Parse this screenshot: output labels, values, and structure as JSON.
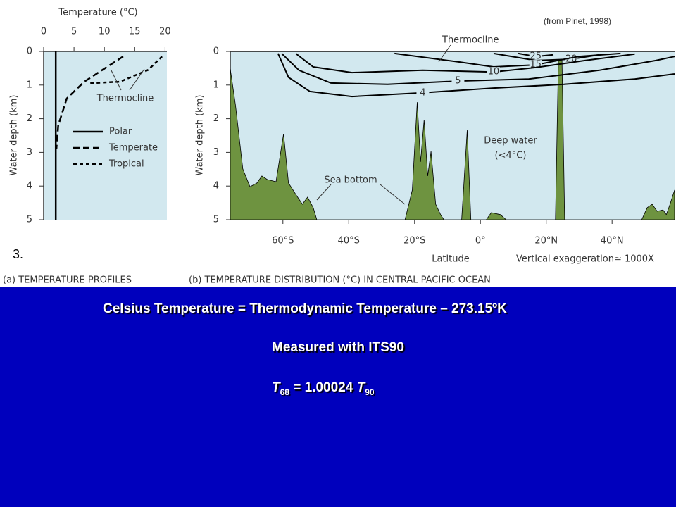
{
  "source": "(from Pinet, 1998)",
  "slide_number": "3.",
  "slide": {
    "lines": [
      "Celsius Temperature = Thermodynamic Temperature – 273.15ºK",
      "Measured with ITS90"
    ],
    "formula": {
      "lhs_symbol": "T",
      "lhs_sub": "68",
      "equals": "= 1.00024",
      "rhs_symbol": "T",
      "rhs_sub": "90"
    }
  },
  "chart_data": [
    {
      "type": "line",
      "title": "(a) TEMPERATURE PROFILES",
      "x_label": "Temperature (°C)",
      "y_label": "Water depth (km)",
      "xlim": [
        0,
        20.3
      ],
      "ylim": [
        0,
        5
      ],
      "y_inverted": true,
      "x_axis_position": "top",
      "xticks": [
        0,
        5,
        10,
        15,
        20
      ],
      "yticks": [
        0,
        1,
        2,
        3,
        4,
        5
      ],
      "background": "#d2e8ef",
      "annotations": {
        "thermocline": "Thermocline"
      },
      "series": [
        {
          "name": "Polar",
          "color": "#000000",
          "dash": "solid",
          "x": [
            2,
            2
          ],
          "values": [
            0,
            5
          ]
        },
        {
          "name": "Temperate",
          "color": "#000000",
          "dash": "long",
          "x": [
            13.1,
            6.7,
            3.8,
            2.4,
            2.1
          ],
          "values": [
            0.15,
            0.9,
            1.4,
            2.2,
            2.9
          ]
        },
        {
          "name": "Tropical",
          "color": "#000000",
          "dash": "short",
          "x": [
            19.5,
            17.2,
            12.6,
            7.3
          ],
          "values": [
            0.15,
            0.55,
            0.9,
            0.95
          ]
        }
      ]
    },
    {
      "type": "contour",
      "title": "(b) TEMPERATURE DISTRIBUTION (°C) IN CENTRAL PACIFIC OCEAN",
      "x_label": "Latitude",
      "y_label": "Water depth (km)",
      "xlim": [
        -76,
        59
      ],
      "ylim": [
        0,
        5
      ],
      "y_inverted": true,
      "x_axis_position": "bottom",
      "xticks": [
        {
          "value": -60,
          "label": "60°S"
        },
        {
          "value": -40,
          "label": "40°S"
        },
        {
          "value": -20,
          "label": "20°S"
        },
        {
          "value": 0,
          "label": "0°"
        },
        {
          "value": 20,
          "label": "20°N"
        },
        {
          "value": 40,
          "label": "40°N"
        }
      ],
      "yticks": [
        0,
        1,
        2,
        3,
        4,
        5
      ],
      "background": "#d2e8ef",
      "annotations": {
        "thermocline": "Thermocline",
        "deep_water": [
          "Deep water",
          "(<4°C)"
        ],
        "sea_bottom": "Sea bottom",
        "exaggeration": "Vertical exaggeration≃ 1000X"
      },
      "floor": {
        "color": "#6e9340",
        "x": [
          -76,
          -74.4,
          -72.2,
          -70.0,
          -67.9,
          -66.4,
          -64.7,
          -62.1,
          -59.8,
          -58.3,
          -56.2,
          -54.1,
          -52.5,
          -50.8,
          -49.7,
          -22.9,
          -20.7,
          -19.2,
          -18.2,
          -17.1,
          -16.0,
          -15.0,
          -13.6,
          -12.1,
          -11.1,
          -5.7,
          -4.0,
          -2.9,
          1.8,
          3.3,
          6.1,
          7.8,
          22.8,
          23.7,
          24.8,
          25.6,
          49.0,
          50.7,
          52.2,
          53.7,
          55.5,
          56.5,
          57.6,
          59
        ],
        "values": [
          0.52,
          1.61,
          3.49,
          4.02,
          3.91,
          3.7,
          3.81,
          3.87,
          2.45,
          3.91,
          4.23,
          4.54,
          4.33,
          4.64,
          5,
          5,
          4.12,
          1.51,
          3.28,
          2.03,
          3.7,
          2.97,
          4.54,
          4.85,
          5,
          5,
          2.34,
          5,
          5,
          4.79,
          4.85,
          5,
          5,
          0.25,
          0.25,
          5,
          5,
          4.64,
          4.54,
          4.75,
          4.71,
          4.85,
          4.54,
          4.12
        ]
      },
      "series": [
        {
          "name": "25",
          "color": "#000000",
          "x": [
            11.5,
            16.8,
            22.2
          ],
          "values": [
            0.06,
            0.15,
            0.1
          ]
        },
        {
          "name": "20",
          "color": "#000000",
          "x": [
            4.0,
            16.8,
            27.6,
            36.1
          ],
          "values": [
            0.06,
            0.27,
            0.23,
            0.1
          ]
        },
        {
          "name": "15",
          "color": "#000000",
          "x": [
            -26.1,
            -6.8,
            4.0,
            16.8,
            29.7,
            42.6
          ],
          "values": [
            0.06,
            0.31,
            0.46,
            0.4,
            0.15,
            0.06
          ]
        },
        {
          "name": "10",
          "color": "#000000",
          "x": [
            -56.1,
            -50.8,
            -39.0,
            -17.5,
            4.0,
            16.8,
            31.8,
            46.9
          ],
          "values": [
            0.06,
            0.46,
            0.63,
            0.56,
            0.61,
            0.48,
            0.27,
            0.08
          ]
        },
        {
          "name": "5",
          "color": "#000000",
          "x": [
            -60.4,
            -55.1,
            -45.4,
            -28.2,
            -6.8,
            14.7,
            36.1,
            53.3,
            59
          ],
          "values": [
            0.06,
            0.56,
            0.94,
            0.98,
            0.88,
            0.82,
            0.56,
            0.27,
            0.15
          ]
        },
        {
          "name": "4",
          "color": "#000000",
          "x": [
            -61.5,
            -58.3,
            -51.8,
            -39.0,
            -17.5,
            4.0,
            25.4,
            46.9,
            59
          ],
          "values": [
            0.06,
            0.77,
            1.19,
            1.34,
            1.23,
            1.09,
            0.98,
            0.82,
            0.67
          ]
        }
      ]
    }
  ]
}
